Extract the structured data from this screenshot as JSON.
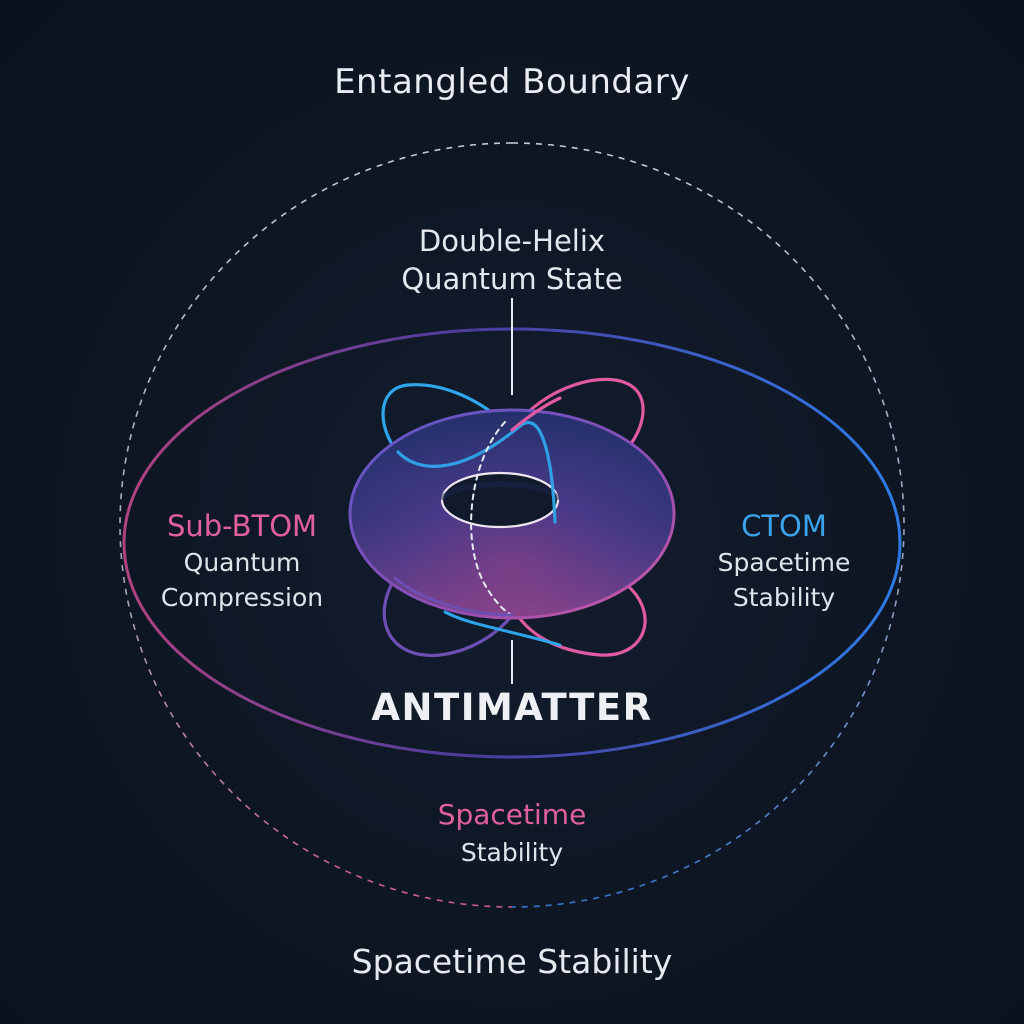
{
  "title_top": "Entangled Boundary",
  "core": {
    "label_line1": "Double-Helix",
    "label_line2": "Quantum State",
    "center_label": "ANTIMATTER"
  },
  "left_node": {
    "heading": "Sub-BTOM",
    "line1": "Quantum",
    "line2": "Compression"
  },
  "right_node": {
    "heading": "CTOM",
    "line1": "Spacetime",
    "line2": "Stability"
  },
  "inner_bottom": {
    "heading": "Spacetime",
    "line": "Stability"
  },
  "bottom_title": "Spacetime Stability",
  "colors": {
    "background": "#0e1623",
    "pink": "#e0609f",
    "blue": "#3aa3ea",
    "purple": "#6a4fb0",
    "text": "#e6e9ef"
  },
  "icons": {
    "core": "torus-icon",
    "orbits": "orbit-rings-icon"
  }
}
